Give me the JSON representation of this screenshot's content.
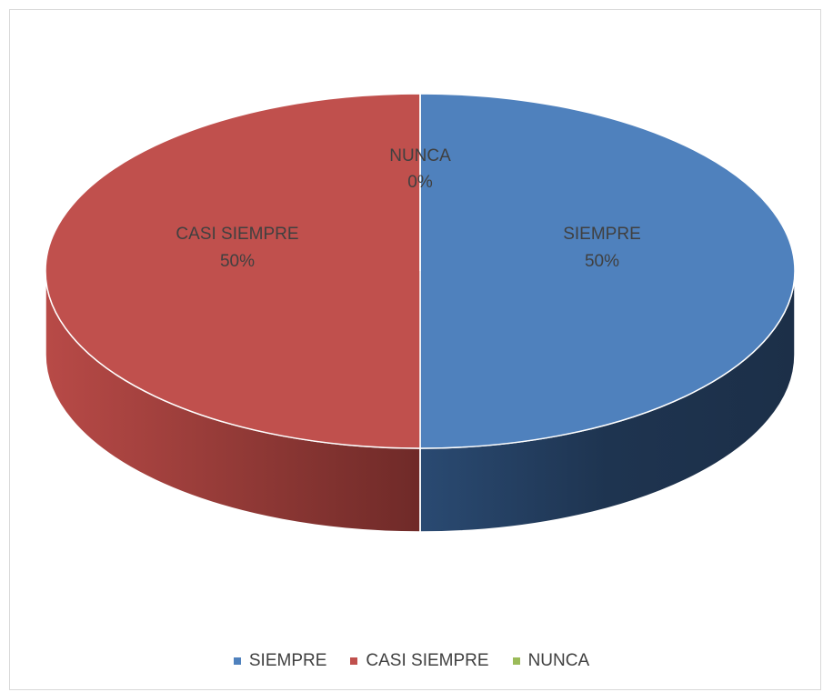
{
  "chart_data": {
    "type": "pie",
    "style": "3d",
    "categories": [
      "SIEMPRE",
      "CASI SIEMPRE",
      "NUNCA"
    ],
    "values": [
      50,
      50,
      0
    ],
    "data_labels": [
      "50%",
      "50%",
      "0%"
    ],
    "colors": [
      "#4f81bd",
      "#c0504d",
      "#9bbb59"
    ],
    "side_colors": [
      "#1f3552",
      "#7a2e2c",
      "#6b8a3a"
    ],
    "legend_position": "bottom",
    "title": ""
  },
  "legend": {
    "items": [
      {
        "label": "SIEMPRE",
        "color": "#4f81bd"
      },
      {
        "label": "CASI SIEMPRE",
        "color": "#c0504d"
      },
      {
        "label": "NUNCA",
        "color": "#9bbb59"
      }
    ]
  }
}
